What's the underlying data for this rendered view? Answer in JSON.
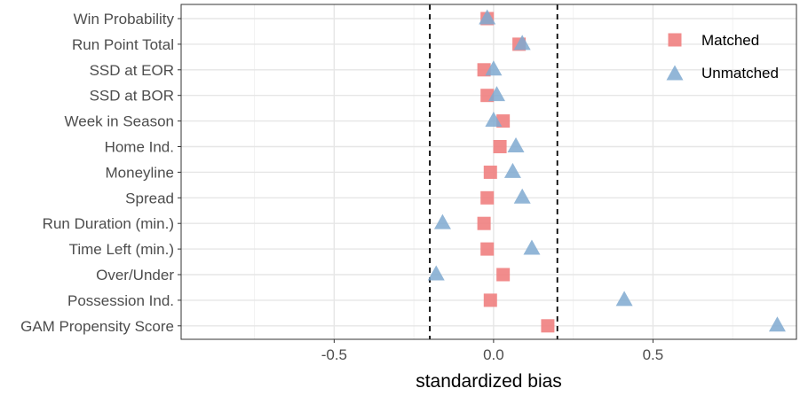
{
  "chart_data": {
    "type": "scatter",
    "title": "",
    "xlabel": "standardized bias",
    "ylabel": "",
    "xlim": [
      -0.98,
      0.95
    ],
    "x_ticks": [
      {
        "value": -0.5,
        "label": "-0.5"
      },
      {
        "value": 0.0,
        "label": "0.0"
      },
      {
        "value": 0.5,
        "label": "0.5"
      }
    ],
    "grid": true,
    "reference_lines": [
      -0.2,
      0.2
    ],
    "categories": [
      "Win Probability",
      "Run Point Total",
      "SSD at EOR",
      "SSD at BOR",
      "Week in Season",
      "Home Ind.",
      "Moneyline",
      "Spread",
      "Run Duration (min.)",
      "Time Left (min.)",
      "Over/Under",
      "Possession Ind.",
      "GAM Propensity Score"
    ],
    "legend_position": "top-right",
    "series": [
      {
        "name": "Matched",
        "shape": "square",
        "color": "#F08080",
        "values": [
          -0.02,
          0.08,
          -0.03,
          -0.02,
          0.03,
          0.02,
          -0.01,
          -0.02,
          -0.03,
          -0.02,
          0.03,
          -0.01,
          0.17
        ]
      },
      {
        "name": "Unmatched",
        "shape": "triangle",
        "color": "#7FA9D0",
        "values": [
          -0.02,
          0.09,
          0.0,
          0.01,
          0.0,
          0.07,
          0.06,
          0.09,
          -0.16,
          0.12,
          -0.18,
          0.41,
          0.89
        ]
      }
    ]
  }
}
